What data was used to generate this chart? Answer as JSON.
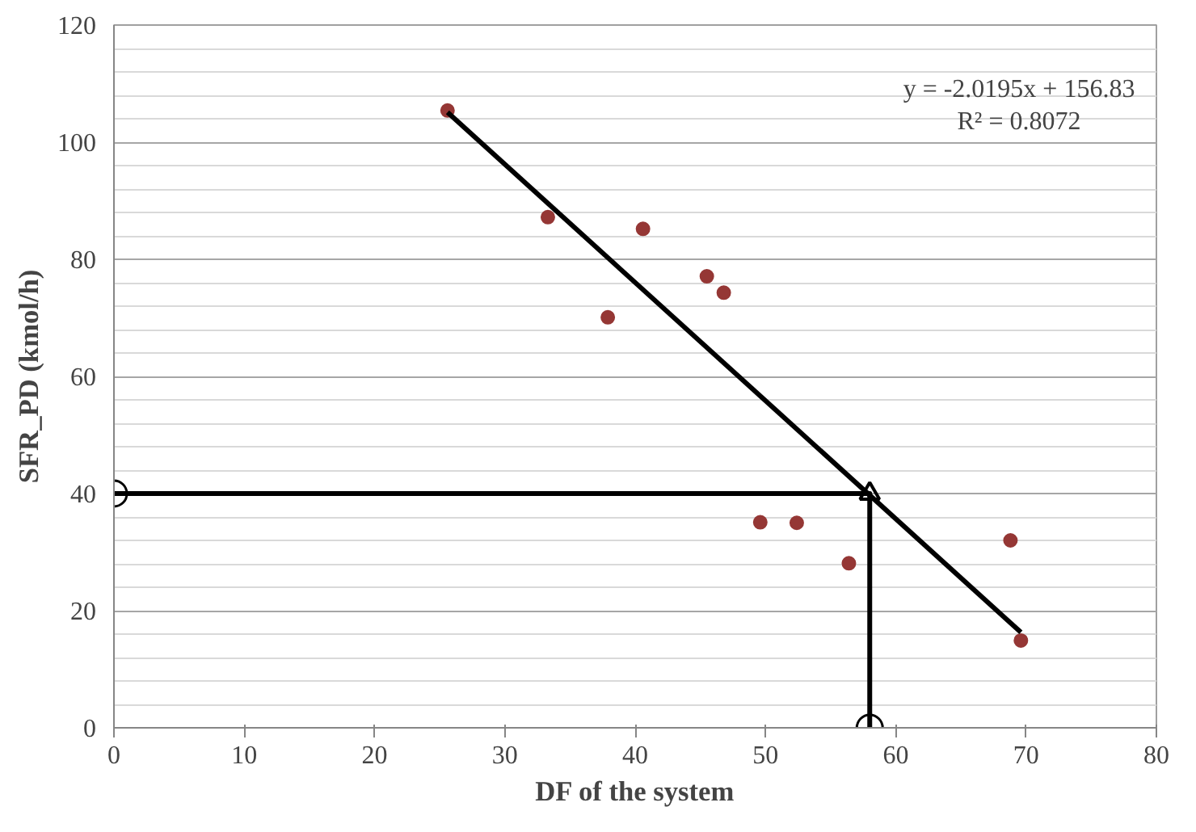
{
  "chart_data": {
    "type": "scatter",
    "xlabel": "DF of the system",
    "ylabel": "SFR_PD (kmol/h)",
    "xlim": [
      0,
      80
    ],
    "xticks": [
      0,
      10,
      20,
      30,
      40,
      50,
      60,
      70,
      80
    ],
    "ylim": [
      0,
      120
    ],
    "yticks": [
      0,
      20,
      40,
      60,
      80,
      100,
      120
    ],
    "grid": "y",
    "marker": "circle",
    "series": [
      {
        "color": "#953735",
        "x": [
          25.6,
          33.3,
          40.6,
          45.5,
          46.8,
          37.9,
          49.6,
          52.4,
          56.4,
          68.8,
          69.6
        ],
        "values": [
          105.4,
          87.2,
          85.2,
          77.1,
          74.3,
          70.1,
          35.1,
          35.0,
          28.1,
          32.0,
          14.9
        ]
      },
      {
        "type": "line",
        "marker": "none",
        "color": "#000000",
        "x": [
          25.6,
          69.6
        ],
        "values": [
          105.1,
          16.3
        ]
      },
      {
        "type": "line",
        "marker": "circle",
        "color": "#000000",
        "x": [
          58,
          58,
          0
        ],
        "values": [
          0,
          40,
          40
        ]
      }
    ],
    "annotations": [
      "y = -2.0195x + 156.83\nR² = 0.8072"
    ]
  }
}
